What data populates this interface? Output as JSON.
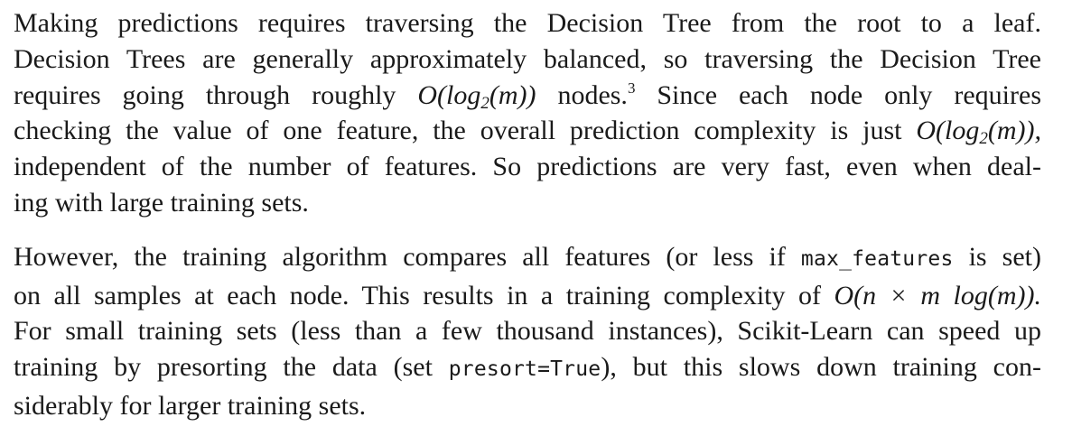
{
  "paragraph_1": {
    "line_1": "Making predictions requires traversing the Decision Tree from the root to a leaf.",
    "line_2": "Decision Trees are generally approximately balanced, so traversing the Decision Tree",
    "line_3_before": "requires going through roughly ",
    "line_3_math_a": "O(log",
    "line_3_sub": "2",
    "line_3_math_b": "(m))",
    "line_3_mid": " nodes.",
    "line_3_footnote": "3",
    "line_3_after": " Since each node only requires",
    "line_4_before": "checking the value of one feature, the overall prediction complexity is just ",
    "line_4_math_a": "O(log",
    "line_4_sub": "2",
    "line_4_math_b": "(m)),",
    "line_5": "independent of the number of features. So predictions are very fast, even when deal-",
    "line_6": "ing with large training sets."
  },
  "paragraph_2": {
    "line_1_before": "However, the training algorithm compares all features (or less if ",
    "line_1_code": "max_features",
    "line_1_after": " is set)",
    "line_2_before": "on all samples at each node. This results in a training complexity of ",
    "line_2_math": "O(n × m log(m)).",
    "line_3": "For small training sets (less than a few thousand instances), Scikit-Learn can speed up",
    "line_4_before": "training by presorting the data (set ",
    "line_4_code": "presort=True",
    "line_4_after": "), but this slows down training con-",
    "line_5": "siderably for larger training sets."
  }
}
